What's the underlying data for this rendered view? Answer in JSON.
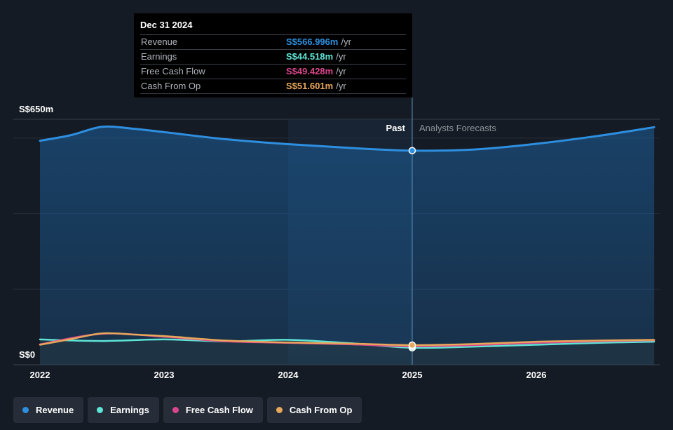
{
  "chart_data": {
    "type": "area",
    "x_start": 2022,
    "x_end": 2026.95,
    "ylim": [
      0,
      650
    ],
    "y_ticks_labeled": [
      {
        "value": 650,
        "label": "S$650m"
      },
      {
        "value": 0,
        "label": "S$0"
      }
    ],
    "x_ticks": [
      {
        "value": 2022,
        "label": "2022"
      },
      {
        "value": 2023,
        "label": "2023"
      },
      {
        "value": 2024,
        "label": "2024"
      },
      {
        "value": 2025,
        "label": "2025"
      },
      {
        "value": 2026,
        "label": "2026"
      }
    ],
    "past_label": "Past",
    "forecast_label": "Analysts Forecasts",
    "divider_x": 2025,
    "highlight_start": 2024,
    "series": [
      {
        "name": "Revenue",
        "color": "#2e8fe0",
        "points": [
          [
            2022.0,
            593
          ],
          [
            2022.25,
            608
          ],
          [
            2022.5,
            630
          ],
          [
            2022.75,
            625
          ],
          [
            2023.0,
            616
          ],
          [
            2023.5,
            597
          ],
          [
            2024.0,
            584
          ],
          [
            2024.5,
            574
          ],
          [
            2025.0,
            567
          ],
          [
            2025.5,
            570
          ],
          [
            2026.0,
            585
          ],
          [
            2026.5,
            606
          ],
          [
            2026.95,
            629
          ]
        ]
      },
      {
        "name": "Earnings",
        "color": "#5ee5d6",
        "points": [
          [
            2022.0,
            67
          ],
          [
            2022.5,
            63
          ],
          [
            2023.0,
            67
          ],
          [
            2023.5,
            62
          ],
          [
            2024.0,
            66
          ],
          [
            2024.5,
            57
          ],
          [
            2025.0,
            45
          ],
          [
            2025.5,
            48
          ],
          [
            2026.0,
            53
          ],
          [
            2026.5,
            58
          ],
          [
            2026.95,
            61
          ]
        ]
      },
      {
        "name": "Free Cash Flow",
        "color": "#d9468b",
        "points": [
          [
            2022.0,
            54
          ],
          [
            2022.5,
            82
          ],
          [
            2023.0,
            74
          ],
          [
            2023.5,
            62
          ],
          [
            2024.0,
            58
          ],
          [
            2024.5,
            54
          ],
          [
            2025.0,
            49
          ],
          [
            2025.5,
            52
          ],
          [
            2026.0,
            58
          ],
          [
            2026.5,
            62
          ],
          [
            2026.95,
            65
          ]
        ]
      },
      {
        "name": "Cash From Op",
        "color": "#e8a75a",
        "points": [
          [
            2022.0,
            53
          ],
          [
            2022.25,
            68
          ],
          [
            2022.5,
            83
          ],
          [
            2022.75,
            80
          ],
          [
            2023.0,
            76
          ],
          [
            2023.5,
            64
          ],
          [
            2024.0,
            59
          ],
          [
            2024.5,
            56
          ],
          [
            2025.0,
            52
          ],
          [
            2025.5,
            55
          ],
          [
            2026.0,
            61
          ],
          [
            2026.5,
            64
          ],
          [
            2026.95,
            66
          ]
        ]
      }
    ]
  },
  "tooltip": {
    "date": "Dec 31 2024",
    "rows": [
      {
        "label": "Revenue",
        "value": "S$566.996m",
        "unit": "/yr",
        "color": "#2e8fe0"
      },
      {
        "label": "Earnings",
        "value": "S$44.518m",
        "unit": "/yr",
        "color": "#5ee5d6"
      },
      {
        "label": "Free Cash Flow",
        "value": "S$49.428m",
        "unit": "/yr",
        "color": "#d9468b"
      },
      {
        "label": "Cash From Op",
        "value": "S$51.601m",
        "unit": "/yr",
        "color": "#e8a75a"
      }
    ]
  },
  "legend": [
    {
      "label": "Revenue",
      "color": "#2e8fe0"
    },
    {
      "label": "Earnings",
      "color": "#5ee5d6"
    },
    {
      "label": "Free Cash Flow",
      "color": "#d9468b"
    },
    {
      "label": "Cash From Op",
      "color": "#e8a75a"
    }
  ]
}
